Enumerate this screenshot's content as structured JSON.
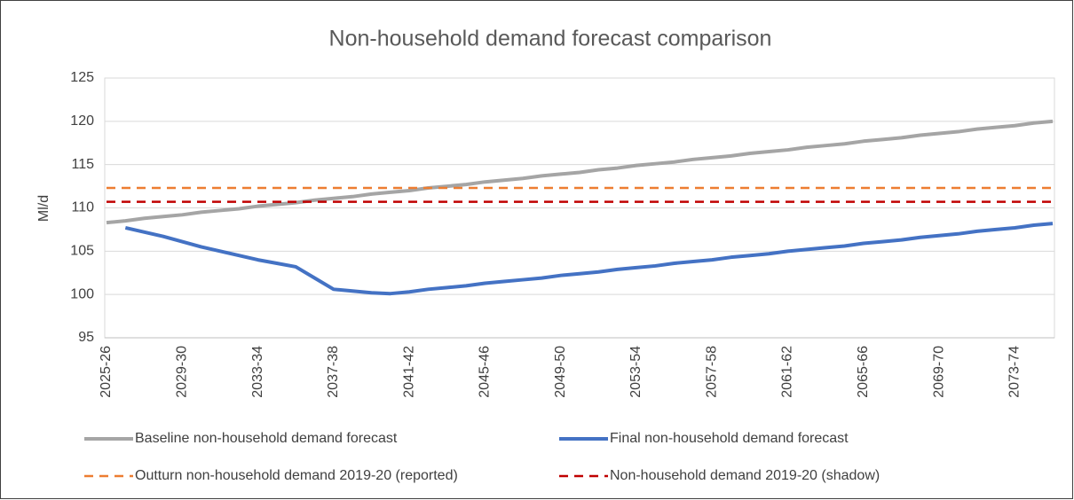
{
  "chart_data": {
    "type": "line",
    "title": "Non-household demand forecast comparison",
    "y_label": "Ml/d",
    "categories": [
      "2025-26",
      null,
      null,
      null,
      "2029-30",
      null,
      null,
      null,
      "2033-34",
      null,
      null,
      null,
      "2037-38",
      null,
      null,
      null,
      "2041-42",
      null,
      null,
      null,
      "2045-46",
      null,
      null,
      null,
      "2049-50",
      null,
      null,
      null,
      "2053-54",
      null,
      null,
      null,
      "2057-58",
      null,
      null,
      null,
      "2061-62",
      null,
      null,
      null,
      "2065-66",
      null,
      null,
      null,
      "2069-70",
      null,
      null,
      null,
      "2073-74",
      null,
      null
    ],
    "ylim": [
      95,
      125
    ],
    "yticks": [
      95,
      100,
      105,
      110,
      115,
      120,
      125
    ],
    "grid": true,
    "legend": "bottom",
    "series": [
      {
        "name": "Baseline non-household demand forecast",
        "color": "#a5a5a5",
        "style": "solid",
        "values": [
          108.3,
          108.5,
          108.8,
          109.0,
          109.2,
          109.5,
          109.7,
          109.9,
          110.2,
          110.4,
          110.6,
          110.9,
          111.1,
          111.3,
          111.6,
          111.8,
          112.0,
          112.3,
          112.5,
          112.7,
          113.0,
          113.2,
          113.4,
          113.7,
          113.9,
          114.1,
          114.4,
          114.6,
          114.9,
          115.1,
          115.3,
          115.6,
          115.8,
          116.0,
          116.3,
          116.5,
          116.7,
          117.0,
          117.2,
          117.4,
          117.7,
          117.9,
          118.1,
          118.4,
          118.6,
          118.8,
          119.1,
          119.3,
          119.5,
          119.8,
          120.0
        ]
      },
      {
        "name": "Final non-household demand forecast",
        "color": "#4472c4",
        "style": "solid",
        "values": [
          null,
          107.7,
          107.2,
          106.7,
          106.1,
          105.5,
          105.0,
          104.5,
          104.0,
          103.6,
          103.2,
          101.9,
          100.6,
          100.4,
          100.2,
          100.1,
          100.3,
          100.6,
          100.8,
          101.0,
          101.3,
          101.5,
          101.7,
          101.9,
          102.2,
          102.4,
          102.6,
          102.9,
          103.1,
          103.3,
          103.6,
          103.8,
          104.0,
          104.3,
          104.5,
          104.7,
          105.0,
          105.2,
          105.4,
          105.6,
          105.9,
          106.1,
          106.3,
          106.6,
          106.8,
          107.0,
          107.3,
          107.5,
          107.7,
          108.0,
          108.2
        ]
      },
      {
        "name": "Outturn non-household demand 2019-20 (reported)",
        "color": "#ed7d31",
        "style": "dashed",
        "values": [
          112.3,
          112.3,
          112.3,
          112.3,
          112.3,
          112.3,
          112.3,
          112.3,
          112.3,
          112.3,
          112.3,
          112.3,
          112.3,
          112.3,
          112.3,
          112.3,
          112.3,
          112.3,
          112.3,
          112.3,
          112.3,
          112.3,
          112.3,
          112.3,
          112.3,
          112.3,
          112.3,
          112.3,
          112.3,
          112.3,
          112.3,
          112.3,
          112.3,
          112.3,
          112.3,
          112.3,
          112.3,
          112.3,
          112.3,
          112.3,
          112.3,
          112.3,
          112.3,
          112.3,
          112.3,
          112.3,
          112.3,
          112.3,
          112.3,
          112.3,
          112.3
        ]
      },
      {
        "name": "Non-household demand 2019-20 (shadow)",
        "color": "#c00000",
        "style": "dashed",
        "values": [
          110.7,
          110.7,
          110.7,
          110.7,
          110.7,
          110.7,
          110.7,
          110.7,
          110.7,
          110.7,
          110.7,
          110.7,
          110.7,
          110.7,
          110.7,
          110.7,
          110.7,
          110.7,
          110.7,
          110.7,
          110.7,
          110.7,
          110.7,
          110.7,
          110.7,
          110.7,
          110.7,
          110.7,
          110.7,
          110.7,
          110.7,
          110.7,
          110.7,
          110.7,
          110.7,
          110.7,
          110.7,
          110.7,
          110.7,
          110.7,
          110.7,
          110.7,
          110.7,
          110.7,
          110.7,
          110.7,
          110.7,
          110.7,
          110.7,
          110.7,
          110.7
        ]
      }
    ]
  }
}
